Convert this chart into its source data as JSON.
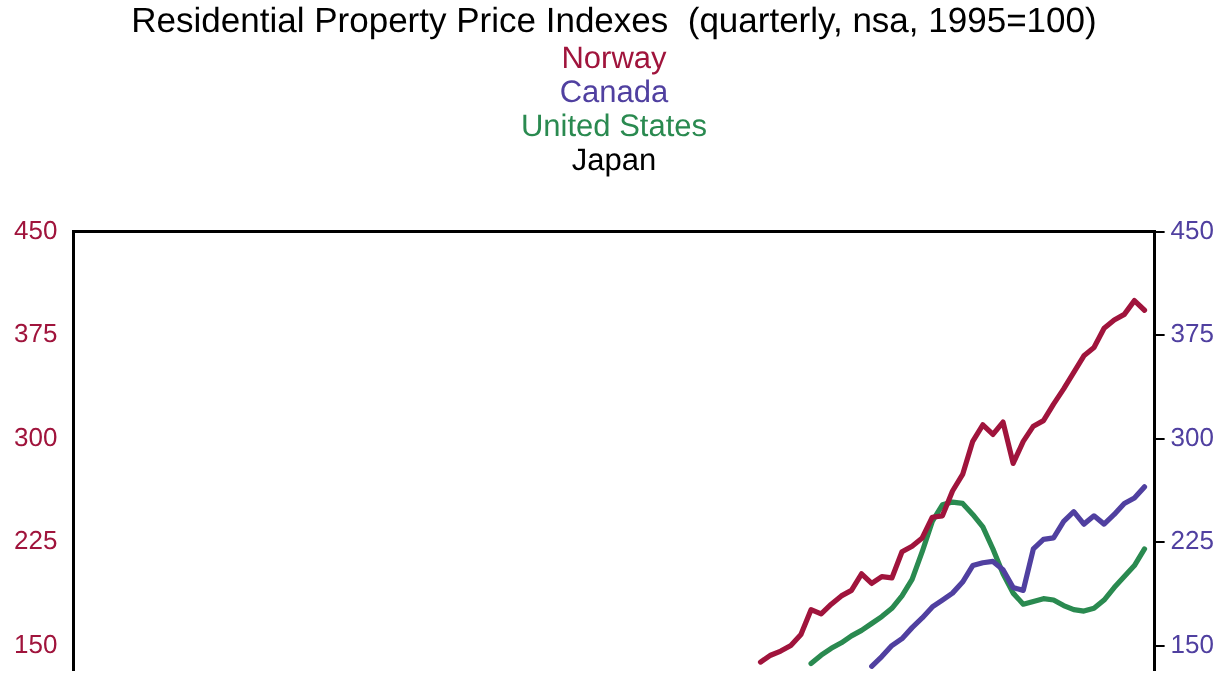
{
  "chart_data": {
    "type": "line",
    "title": "Residential Property Price Indexes  (quarterly, nsa, 1995=100)",
    "categories": [
      null,
      null,
      null,
      null,
      null,
      null,
      null,
      null,
      null,
      null,
      null,
      null,
      null,
      null,
      null,
      null,
      null,
      null,
      null,
      null,
      null,
      null,
      null,
      null,
      null,
      null,
      null,
      null,
      null,
      null,
      null,
      null,
      null,
      null,
      null,
      null,
      null,
      null,
      null,
      null,
      null,
      null,
      null,
      null,
      null,
      null,
      null,
      null,
      null,
      null,
      null,
      null,
      null,
      null,
      null,
      null,
      null,
      null,
      null,
      null,
      null,
      null,
      null,
      null,
      null,
      null,
      null,
      null,
      null,
      null,
      null,
      null,
      null,
      null,
      null,
      null,
      null,
      null,
      null,
      null,
      null,
      null,
      null,
      null,
      null,
      null,
      null,
      null,
      null,
      null,
      null,
      null,
      null,
      null,
      null,
      null,
      null,
      null,
      null,
      null,
      null,
      null,
      null,
      null,
      null,
      null,
      null,
      null
    ],
    "series": [
      {
        "name": "Norway",
        "color": "#a0143c",
        "values": [
          null,
          null,
          null,
          null,
          null,
          null,
          null,
          null,
          null,
          null,
          null,
          null,
          null,
          null,
          null,
          null,
          null,
          null,
          null,
          null,
          null,
          null,
          null,
          null,
          null,
          null,
          null,
          null,
          null,
          null,
          null,
          null,
          null,
          null,
          null,
          null,
          null,
          null,
          null,
          null,
          null,
          null,
          null,
          null,
          null,
          null,
          null,
          null,
          null,
          null,
          null,
          null,
          null,
          null,
          null,
          null,
          null,
          null,
          null,
          null,
          null,
          null,
          null,
          null,
          null,
          null,
          null,
          null,
          138,
          143,
          146,
          150,
          158,
          176,
          173,
          180,
          186,
          190,
          202,
          195,
          200,
          199,
          218,
          222,
          228,
          243,
          244,
          262,
          274,
          298,
          310,
          303,
          312,
          282,
          298,
          309,
          313,
          325,
          336,
          348,
          360,
          366,
          380,
          386,
          390,
          400,
          393,
          null
        ]
      },
      {
        "name": "Canada",
        "color": "#5040a0",
        "values": [
          null,
          null,
          null,
          null,
          null,
          null,
          null,
          null,
          null,
          null,
          null,
          null,
          null,
          null,
          null,
          null,
          null,
          null,
          null,
          null,
          null,
          null,
          null,
          null,
          null,
          null,
          null,
          null,
          null,
          null,
          null,
          null,
          null,
          null,
          null,
          null,
          null,
          null,
          null,
          null,
          null,
          null,
          null,
          null,
          null,
          null,
          null,
          null,
          null,
          null,
          null,
          null,
          null,
          null,
          null,
          null,
          null,
          null,
          null,
          null,
          null,
          null,
          null,
          null,
          null,
          null,
          null,
          null,
          null,
          null,
          null,
          null,
          null,
          null,
          null,
          null,
          null,
          null,
          null,
          135,
          142,
          150,
          155,
          163,
          170,
          178,
          183,
          188,
          196,
          208,
          210,
          211,
          205,
          192,
          190,
          220,
          227,
          228,
          240,
          247,
          238,
          244,
          238,
          245,
          253,
          257,
          265,
          null
        ]
      },
      {
        "name": "United States",
        "color": "#2a8a50",
        "values": [
          null,
          null,
          null,
          null,
          null,
          null,
          null,
          null,
          null,
          null,
          null,
          null,
          null,
          null,
          null,
          null,
          null,
          null,
          null,
          null,
          null,
          null,
          null,
          null,
          null,
          null,
          null,
          null,
          null,
          null,
          null,
          null,
          null,
          null,
          null,
          null,
          null,
          null,
          null,
          null,
          null,
          null,
          null,
          null,
          null,
          null,
          null,
          null,
          null,
          null,
          null,
          null,
          null,
          null,
          null,
          null,
          null,
          null,
          null,
          null,
          null,
          null,
          null,
          null,
          null,
          null,
          null,
          null,
          null,
          null,
          null,
          null,
          null,
          137,
          143,
          148,
          152,
          157,
          161,
          166,
          171,
          177,
          186,
          198,
          218,
          240,
          252,
          254,
          253,
          245,
          236,
          220,
          202,
          188,
          180,
          182,
          184,
          183,
          179,
          176,
          175,
          177,
          183,
          192,
          200,
          208,
          220,
          null
        ]
      },
      {
        "name": "Japan",
        "color": "#000000",
        "values": [
          null,
          null,
          null,
          null,
          null,
          null,
          null,
          null,
          null,
          null,
          null,
          null,
          null,
          null,
          null,
          null,
          null,
          null,
          null,
          null,
          null,
          null,
          null,
          null,
          null,
          null,
          null,
          null,
          null,
          null,
          null,
          null,
          null,
          null,
          null,
          null,
          null,
          null,
          null,
          null,
          null,
          null,
          null,
          null,
          null,
          null,
          null,
          null,
          null,
          null,
          null,
          null,
          null,
          null,
          null,
          null,
          null,
          null,
          null,
          null,
          null,
          null,
          null,
          null,
          null,
          null,
          null,
          null,
          null,
          null,
          null,
          null,
          null,
          null,
          null,
          null,
          null,
          null,
          null,
          null,
          null,
          null,
          null,
          null,
          null,
          null,
          null,
          null,
          null,
          null,
          null,
          null,
          null,
          null,
          null,
          null,
          null,
          null,
          null,
          null,
          null,
          null,
          null,
          null,
          null,
          null,
          null,
          null
        ]
      }
    ],
    "ylim": [
      132,
      450
    ],
    "yticks": [
      150,
      225,
      300,
      375,
      450
    ],
    "y2lim": [
      132,
      450
    ],
    "y2ticks": [
      150,
      225,
      300,
      375,
      450
    ],
    "tick_labels": "y",
    "grid": false,
    "legend": "top",
    "marker": "none",
    "line_style": "solid"
  }
}
